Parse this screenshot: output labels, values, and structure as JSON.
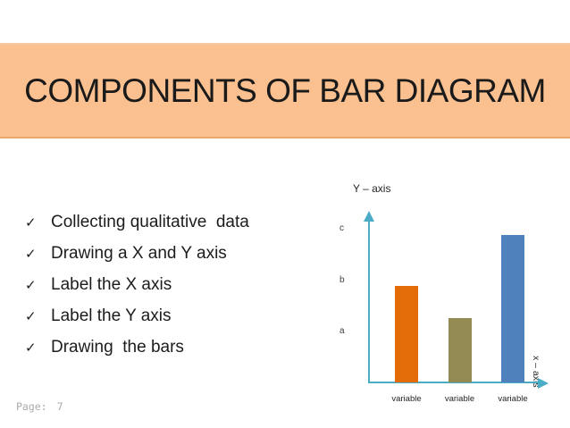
{
  "slide": {
    "title": "COMPONENTS OF BAR DIAGRAM",
    "bullets": [
      "Collecting qualitative  data",
      "Drawing a X and Y axis",
      "Label the X axis",
      "Label the Y axis",
      "Drawing  the bars"
    ],
    "footer": {
      "label": "Page:",
      "number": "7"
    }
  },
  "icons": {
    "check": "✓"
  },
  "colors": {
    "title_band_bg": "#FAC090",
    "title_text": "#1a1a1a",
    "bullet_text": "#1c1c1c",
    "axis": "#4BACC6",
    "tick_text": "#3f3f3f",
    "category_text": "#262626",
    "footer_text": "#ababab"
  },
  "chart_data": {
    "type": "bar",
    "title": "",
    "y_axis_label": "Y – axis",
    "x_axis_label": "x – axis",
    "categories": [
      "variable",
      "variable",
      "variable"
    ],
    "values": [
      1.88,
      1.26,
      2.87
    ],
    "bar_colors": [
      "#E36C09",
      "#948A54",
      "#4F81BD"
    ],
    "y_ticks": [
      {
        "label": "a",
        "value": 1
      },
      {
        "label": "b",
        "value": 2
      },
      {
        "label": "c",
        "value": 3
      }
    ],
    "ylim": [
      0,
      3.3
    ],
    "axis_color": "#4BACC6",
    "grid": "off",
    "legend": "none"
  }
}
